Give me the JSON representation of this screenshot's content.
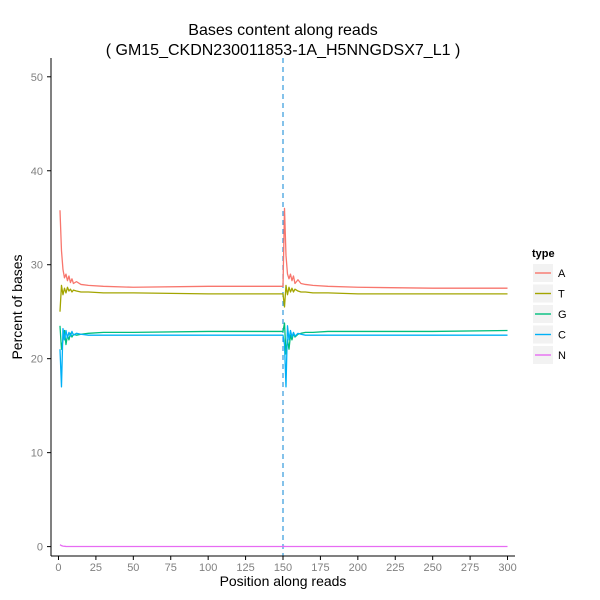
{
  "chart_data": {
    "type": "line",
    "title": "Bases content along reads",
    "subtitle": "( GM15_CKDN230011853-1A_H5NNGDSX7_L1 )",
    "xlabel": "Position along reads",
    "ylabel": "Percent of bases",
    "xlim": [
      -5,
      305
    ],
    "ylim": [
      -1,
      52
    ],
    "x_ticks": [
      0,
      25,
      50,
      75,
      100,
      125,
      150,
      175,
      200,
      225,
      250,
      275,
      300
    ],
    "x_tick_labels": [
      "0",
      "25",
      "50",
      "75",
      "100",
      "125",
      "150",
      "175",
      "200",
      "225",
      "250",
      "275",
      "300"
    ],
    "y_ticks": [
      0,
      10,
      20,
      30,
      40,
      50
    ],
    "y_tick_labels": [
      "0",
      "10",
      "20",
      "30",
      "40",
      "50"
    ],
    "grid": false,
    "legend": {
      "title": "type",
      "position": "right"
    },
    "vline": {
      "x": 150,
      "style": "dashed",
      "color": "#3399dd"
    },
    "series": [
      {
        "name": "A",
        "color": "#f8766d",
        "x": [
          1,
          2,
          3,
          4,
          5,
          6,
          7,
          8,
          9,
          10,
          12,
          15,
          20,
          30,
          50,
          100,
          150,
          151,
          152,
          153,
          154,
          155,
          156,
          157,
          158,
          160,
          162,
          165,
          170,
          180,
          200,
          250,
          300
        ],
        "values": [
          35.8,
          31.5,
          29.5,
          28.6,
          29.0,
          28.3,
          28.8,
          28.1,
          28.5,
          28.0,
          28.2,
          27.9,
          27.8,
          27.7,
          27.6,
          27.7,
          27.7,
          36.0,
          31.0,
          29.0,
          28.5,
          29.0,
          28.3,
          28.8,
          28.0,
          28.4,
          28.0,
          27.9,
          27.8,
          27.7,
          27.6,
          27.5,
          27.5
        ]
      },
      {
        "name": "T",
        "color": "#a3a500",
        "x": [
          1,
          2,
          3,
          4,
          5,
          6,
          7,
          8,
          9,
          10,
          12,
          15,
          20,
          30,
          50,
          100,
          150,
          151,
          152,
          153,
          154,
          155,
          156,
          157,
          158,
          160,
          162,
          165,
          170,
          180,
          200,
          250,
          300
        ],
        "values": [
          25.0,
          27.8,
          26.8,
          27.5,
          27.0,
          27.6,
          27.2,
          27.4,
          27.1,
          27.3,
          27.2,
          27.1,
          27.1,
          27.0,
          27.0,
          26.9,
          26.9,
          25.5,
          27.8,
          26.8,
          27.6,
          27.1,
          27.5,
          27.1,
          27.4,
          27.2,
          27.1,
          27.1,
          27.0,
          27.0,
          26.9,
          26.9,
          26.9
        ]
      },
      {
        "name": "G",
        "color": "#00bf7d",
        "x": [
          1,
          2,
          3,
          4,
          5,
          6,
          7,
          8,
          9,
          10,
          12,
          15,
          20,
          30,
          50,
          100,
          150,
          151,
          152,
          153,
          154,
          155,
          156,
          157,
          158,
          160,
          162,
          165,
          170,
          180,
          200,
          250,
          300
        ],
        "values": [
          23.5,
          21.0,
          22.0,
          23.0,
          21.5,
          22.5,
          22.0,
          22.7,
          22.3,
          22.6,
          22.5,
          22.6,
          22.7,
          22.8,
          22.8,
          22.9,
          22.9,
          23.8,
          20.5,
          22.0,
          21.0,
          22.5,
          22.0,
          22.7,
          22.3,
          22.6,
          22.7,
          22.8,
          22.8,
          22.9,
          22.9,
          22.9,
          23.0
        ]
      },
      {
        "name": "C",
        "color": "#00b0f6",
        "x": [
          1,
          2,
          3,
          4,
          5,
          6,
          7,
          8,
          9,
          10,
          12,
          15,
          20,
          30,
          50,
          100,
          150,
          151,
          152,
          153,
          154,
          155,
          156,
          157,
          158,
          160,
          162,
          165,
          170,
          180,
          200,
          250,
          300
        ],
        "values": [
          21.0,
          17.0,
          23.2,
          22.0,
          23.0,
          22.2,
          22.8,
          22.4,
          22.9,
          22.5,
          22.7,
          22.6,
          22.5,
          22.5,
          22.5,
          22.5,
          22.5,
          21.5,
          17.0,
          23.5,
          22.0,
          23.0,
          22.3,
          22.8,
          22.4,
          22.7,
          22.6,
          22.5,
          22.5,
          22.5,
          22.5,
          22.5,
          22.5
        ]
      },
      {
        "name": "N",
        "color": "#e76bf3",
        "x": [
          1,
          2,
          3,
          5,
          10,
          50,
          100,
          150,
          151,
          152,
          200,
          250,
          300
        ],
        "values": [
          0.2,
          0.1,
          0.05,
          0.02,
          0.01,
          0.01,
          0.01,
          0.01,
          0.02,
          0.01,
          0.01,
          0.01,
          0.01
        ]
      }
    ]
  }
}
